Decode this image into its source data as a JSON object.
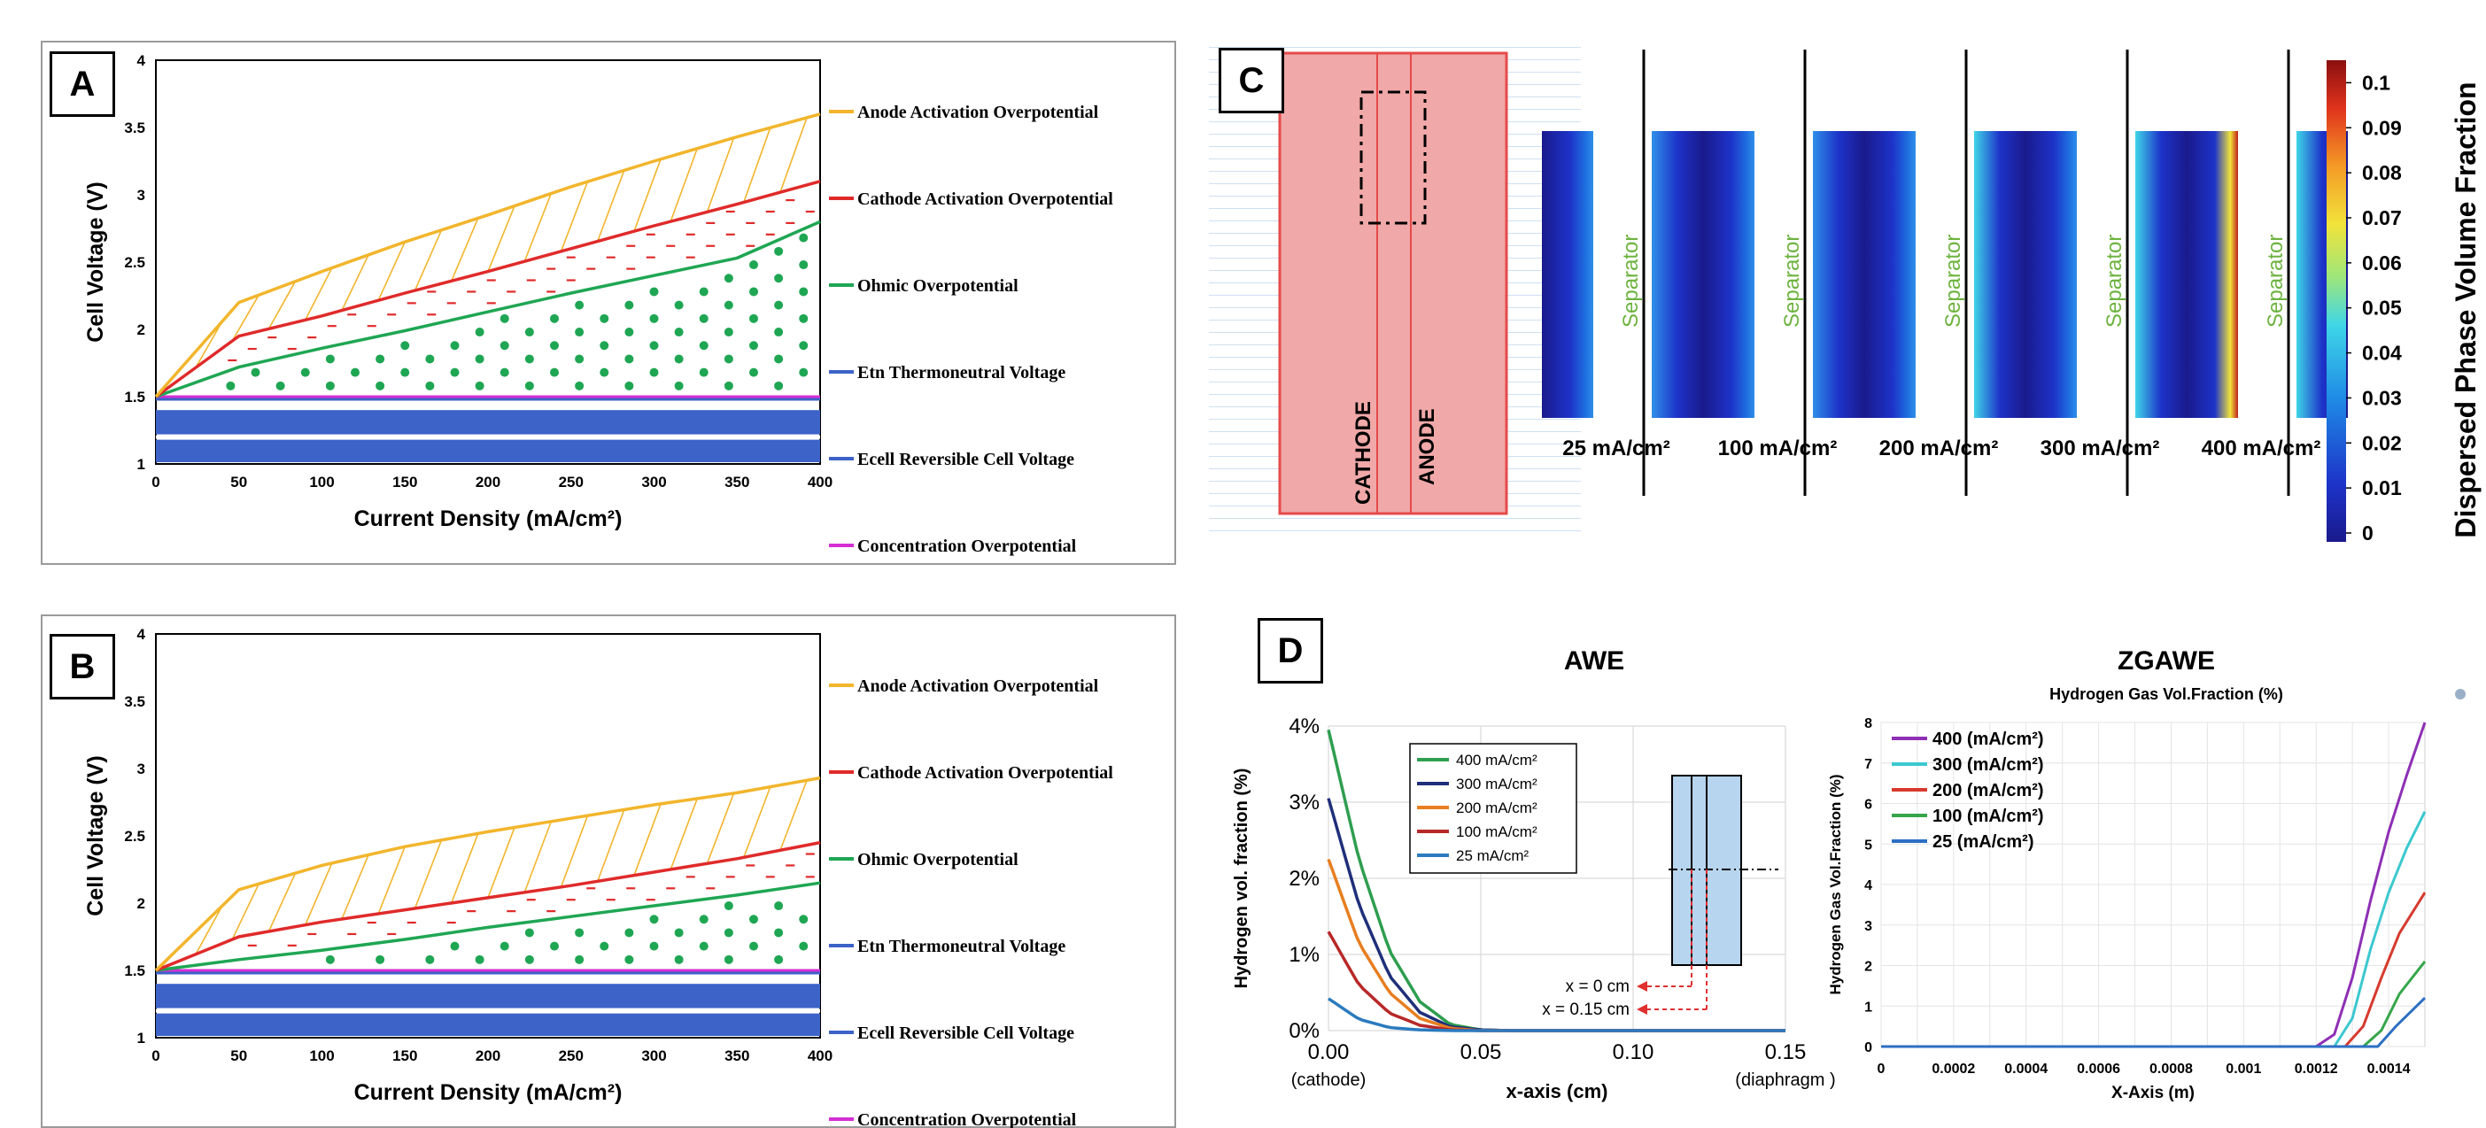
{
  "panel_labels": {
    "a": "A",
    "b": "B",
    "c": "C",
    "d": "D"
  },
  "voltage_charts": {
    "ylabel": "Cell Voltage (V)",
    "xlabel": "Current Density (mA/cm²)",
    "x_ticks": [
      "0",
      "50",
      "100",
      "150",
      "200",
      "250",
      "300",
      "350",
      "400"
    ],
    "y_ticks": [
      "1",
      "1.5",
      "2",
      "2.5",
      "3",
      "3.5",
      "4"
    ],
    "legend": [
      {
        "label": "Anode Activation Overpotential",
        "color": "#f2b52c"
      },
      {
        "label": "Cathode Activation Overpotential",
        "color": "#e02a2a"
      },
      {
        "label": "Ohmic Overpotential",
        "color": "#1fa653"
      },
      {
        "label": "Etn Thermoneutral Voltage",
        "color": "#3d62c8"
      },
      {
        "label": "Ecell Reversible Cell Voltage",
        "color": "#3d62c8"
      },
      {
        "label": "Concentration Overpotential",
        "color": "#d42fd4"
      }
    ]
  },
  "panel_c": {
    "cathode": "CATHODE",
    "anode": "ANODE",
    "separator": "Separator",
    "cells": [
      {
        "label": "25 mA/cm²",
        "left_max": 0.005,
        "right_max": 0.02
      },
      {
        "label": "100 mA/cm²",
        "left_max": 0.01,
        "right_max": 0.04
      },
      {
        "label": "200 mA/cm²",
        "left_max": 0.015,
        "right_max": 0.05
      },
      {
        "label": "300 mA/cm²",
        "left_max": 0.02,
        "right_max": 0.06
      },
      {
        "label": "400 mA/cm²",
        "left_max": 0.1,
        "right_max": 0.06
      }
    ],
    "colorbar_title": "Dispersed Phase Volume Fraction",
    "colorbar_ticks": [
      "0.1",
      "0.09",
      "0.08",
      "0.07",
      "0.06",
      "0.05",
      "0.04",
      "0.03",
      "0.02",
      "0.01",
      "0"
    ]
  },
  "panel_d": {
    "awe_title": "AWE",
    "zgawe_title": "ZGAWE",
    "awe_x_ticks": [
      "0.00",
      "0.05",
      "0.10",
      "0.15"
    ],
    "awe_x_sub_left": "(cathode)",
    "awe_x_sub_right": "(diaphragm )",
    "awe_y_ticks": [
      "0%",
      "1%",
      "2%",
      "3%",
      "4%"
    ],
    "awe_x_label": "x-axis (cm)",
    "awe_y_label": "Hydrogen vol. fraction (%)",
    "inset_x0": "x = 0 cm",
    "inset_x015": "x = 0.15 cm",
    "z_plot_title": "Hydrogen Gas Vol.Fraction (%)",
    "z_y_label": "Hydrogen Gas Vol.Fraction (%)",
    "z_x_label": "X-Axis (m)",
    "z_x_ticks": [
      "0",
      "0.0002",
      "0.0004",
      "0.0006",
      "0.0008",
      "0.001",
      "0.0012",
      "0.0014"
    ],
    "z_y_ticks": [
      "0",
      "1",
      "2",
      "3",
      "4",
      "5",
      "6",
      "7",
      "8"
    ]
  },
  "chart_data": [
    {
      "type": "area",
      "title": "",
      "xlabel": "Current Density (mA/cm²)",
      "ylabel": "Cell Voltage (V)",
      "xlim": [
        0,
        400
      ],
      "ylim": [
        1,
        4
      ],
      "x": [
        0,
        50,
        100,
        150,
        200,
        250,
        300,
        350,
        400
      ],
      "series": [
        {
          "name": "Ecell Reversible Cell Voltage",
          "values": [
            1.23,
            1.23,
            1.23,
            1.23,
            1.23,
            1.23,
            1.23,
            1.23,
            1.23
          ]
        },
        {
          "name": "Etn Thermoneutral Voltage",
          "values": [
            1.48,
            1.48,
            1.48,
            1.48,
            1.48,
            1.48,
            1.48,
            1.48,
            1.48
          ]
        },
        {
          "name": "Concentration Overpotential",
          "values": [
            1.5,
            1.5,
            1.5,
            1.5,
            1.5,
            1.5,
            1.5,
            1.5,
            1.5
          ]
        },
        {
          "name": "Ohmic Overpotential",
          "values": [
            1.5,
            1.72,
            1.86,
            1.99,
            2.13,
            2.27,
            2.4,
            2.53,
            2.8
          ]
        },
        {
          "name": "Cathode Activation Overpotential",
          "values": [
            1.5,
            1.95,
            2.1,
            2.27,
            2.43,
            2.6,
            2.77,
            2.93,
            3.1
          ]
        },
        {
          "name": "Anode Activation Overpotential",
          "values": [
            1.5,
            2.2,
            2.43,
            2.65,
            2.85,
            3.06,
            3.25,
            3.43,
            3.6
          ]
        }
      ]
    },
    {
      "type": "area",
      "title": "",
      "xlabel": "Current Density (mA/cm²)",
      "ylabel": "Cell Voltage (V)",
      "xlim": [
        0,
        400
      ],
      "ylim": [
        1,
        4
      ],
      "x": [
        0,
        50,
        100,
        150,
        200,
        250,
        300,
        350,
        400
      ],
      "series": [
        {
          "name": "Ecell Reversible Cell Voltage",
          "values": [
            1.23,
            1.23,
            1.23,
            1.23,
            1.23,
            1.23,
            1.23,
            1.23,
            1.23
          ]
        },
        {
          "name": "Etn Thermoneutral Voltage",
          "values": [
            1.48,
            1.48,
            1.48,
            1.48,
            1.48,
            1.48,
            1.48,
            1.48,
            1.48
          ]
        },
        {
          "name": "Concentration Overpotential",
          "values": [
            1.5,
            1.5,
            1.5,
            1.5,
            1.5,
            1.5,
            1.5,
            1.5,
            1.5
          ]
        },
        {
          "name": "Ohmic Overpotential",
          "values": [
            1.5,
            1.58,
            1.65,
            1.73,
            1.82,
            1.9,
            1.98,
            2.06,
            2.15
          ]
        },
        {
          "name": "Cathode Activation Overpotential",
          "values": [
            1.5,
            1.75,
            1.86,
            1.95,
            2.04,
            2.13,
            2.23,
            2.33,
            2.45
          ]
        },
        {
          "name": "Anode Activation Overpotential",
          "values": [
            1.5,
            2.1,
            2.28,
            2.42,
            2.53,
            2.63,
            2.73,
            2.82,
            2.93
          ]
        }
      ]
    },
    {
      "type": "line",
      "title": "AWE",
      "xlabel": "x-axis (cm)",
      "ylabel": "Hydrogen vol. fraction (%)",
      "xlim": [
        0,
        0.15
      ],
      "ylim": [
        0,
        4
      ],
      "series": [
        {
          "name": "400 mA/cm²",
          "color": "#2e9e4f",
          "x": [
            0,
            0.01,
            0.02,
            0.03,
            0.04,
            0.05,
            0.06
          ],
          "y": [
            3.95,
            2.25,
            1.05,
            0.38,
            0.08,
            0.01,
            0
          ]
        },
        {
          "name": "300 mA/cm²",
          "color": "#1f2f7a",
          "x": [
            0,
            0.01,
            0.02,
            0.03,
            0.04,
            0.05,
            0.06
          ],
          "y": [
            3.05,
            1.65,
            0.72,
            0.24,
            0.05,
            0.01,
            0
          ]
        },
        {
          "name": "200 mA/cm²",
          "color": "#e87e20",
          "x": [
            0,
            0.01,
            0.02,
            0.03,
            0.04,
            0.05,
            0.06
          ],
          "y": [
            2.25,
            1.15,
            0.5,
            0.16,
            0.03,
            0,
            0
          ]
        },
        {
          "name": "100 mA/cm²",
          "color": "#b82828",
          "x": [
            0,
            0.01,
            0.02,
            0.03,
            0.04,
            0.05,
            0.06
          ],
          "y": [
            1.3,
            0.6,
            0.23,
            0.07,
            0.01,
            0,
            0
          ]
        },
        {
          "name": "25 mA/cm²",
          "color": "#2b7bbf",
          "x": [
            0,
            0.01,
            0.02,
            0.03,
            0.04,
            0.05,
            0.06
          ],
          "y": [
            0.42,
            0.15,
            0.04,
            0.01,
            0,
            0,
            0
          ]
        }
      ]
    },
    {
      "type": "line",
      "title": "Hydrogen Gas Vol.Fraction (%)",
      "xlabel": "X-Axis (m)",
      "ylabel": "Hydrogen Gas Vol.Fraction (%)",
      "xlim": [
        0,
        0.0015
      ],
      "ylim": [
        0,
        8
      ],
      "series": [
        {
          "name": "400 (mA/cm²)",
          "color": "#8e2fb5",
          "x": [
            0,
            0.0012,
            0.00125,
            0.0013,
            0.00135,
            0.0014,
            0.00145,
            0.0015
          ],
          "y": [
            0,
            0,
            0.3,
            1.7,
            3.6,
            5.3,
            6.7,
            8.0
          ]
        },
        {
          "name": "300 (mA/cm²)",
          "color": "#3cc8cf",
          "x": [
            0,
            0.00125,
            0.0013,
            0.00135,
            0.0014,
            0.00145,
            0.0015
          ],
          "y": [
            0,
            0,
            0.7,
            2.4,
            3.8,
            4.9,
            5.8
          ]
        },
        {
          "name": "200 (mA/cm²)",
          "color": "#d63a2e",
          "x": [
            0,
            0.00128,
            0.00133,
            0.00138,
            0.00143,
            0.0015
          ],
          "y": [
            0,
            0,
            0.5,
            1.7,
            2.8,
            3.8
          ]
        },
        {
          "name": "100 (mA/cm²)",
          "color": "#35a64a",
          "x": [
            0,
            0.00133,
            0.00138,
            0.00143,
            0.0015
          ],
          "y": [
            0,
            0,
            0.4,
            1.3,
            2.1
          ]
        },
        {
          "name": "25 (mA/cm²)",
          "color": "#2c6fc4",
          "x": [
            0,
            0.00137,
            0.00142,
            0.0015
          ],
          "y": [
            0,
            0,
            0.5,
            1.2
          ]
        }
      ]
    }
  ]
}
